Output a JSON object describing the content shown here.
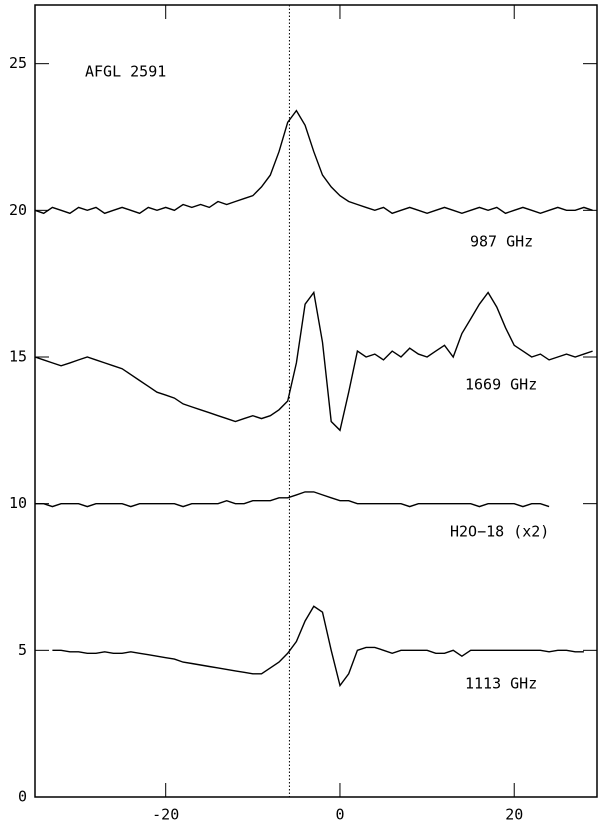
{
  "chart_data": {
    "type": "line",
    "annotations": [
      "AFGL 2591",
      "987 GHz",
      "1669 GHz",
      "H2O−18 (x2)",
      "1113 GHz"
    ],
    "x": [
      -35,
      -34,
      -33,
      -32,
      -31,
      -30,
      -29,
      -28,
      -27,
      -26,
      -25,
      -24,
      -23,
      -22,
      -21,
      -20,
      -19,
      -18,
      -17,
      -16,
      -15,
      -14,
      -13,
      -12,
      -11,
      -10,
      -9,
      -8,
      -7,
      -6,
      -5,
      -4,
      -3,
      -2,
      -1,
      0,
      1,
      2,
      3,
      4,
      5,
      6,
      7,
      8,
      9,
      10,
      11,
      12,
      13,
      14,
      15,
      16,
      17,
      18,
      19,
      20,
      21,
      22,
      23,
      24,
      25,
      26,
      27,
      28,
      29
    ],
    "series": [
      {
        "name": "987 GHz",
        "color": "#000000",
        "values": [
          20.0,
          19.9,
          20.1,
          20.0,
          19.9,
          20.1,
          20.0,
          20.1,
          19.9,
          20.0,
          20.1,
          20.0,
          19.9,
          20.1,
          20.0,
          20.1,
          20.0,
          20.2,
          20.1,
          20.2,
          20.1,
          20.3,
          20.2,
          20.3,
          20.4,
          20.5,
          20.8,
          21.2,
          22.0,
          23.0,
          23.4,
          22.9,
          22.0,
          21.2,
          20.8,
          20.5,
          20.3,
          20.2,
          20.1,
          20.0,
          20.1,
          19.9,
          20.0,
          20.1,
          20.0,
          19.9,
          20.0,
          20.1,
          20.0,
          19.9,
          20.0,
          20.1,
          20.0,
          20.1,
          19.9,
          20.0,
          20.1,
          20.0,
          19.9,
          20.0,
          20.1,
          20.0,
          20.0,
          20.1,
          20.0
        ]
      },
      {
        "name": "1669 GHz",
        "color": "#000000",
        "values": [
          15.0,
          14.9,
          14.8,
          14.7,
          14.8,
          14.9,
          15.0,
          14.9,
          14.8,
          14.7,
          14.6,
          14.4,
          14.2,
          14.0,
          13.8,
          13.7,
          13.6,
          13.4,
          13.3,
          13.2,
          13.1,
          13.0,
          12.9,
          12.8,
          12.9,
          13.0,
          12.9,
          13.0,
          13.2,
          13.5,
          14.8,
          16.8,
          17.2,
          15.5,
          12.8,
          12.5,
          13.8,
          15.2,
          15.0,
          15.1,
          14.9,
          15.2,
          15.0,
          15.3,
          15.1,
          15.0,
          15.2,
          15.4,
          15.0,
          15.8,
          16.3,
          16.8,
          17.2,
          16.7,
          16.0,
          15.4,
          15.2,
          15.0,
          15.1,
          14.9,
          15.0,
          15.1,
          15.0,
          15.1,
          15.2
        ]
      },
      {
        "name": "H2O−18 (x2)",
        "color": "#000000",
        "values": [
          10.0,
          10.0,
          9.9,
          10.0,
          10.0,
          10.0,
          9.9,
          10.0,
          10.0,
          10.0,
          10.0,
          9.9,
          10.0,
          10.0,
          10.0,
          10.0,
          10.0,
          9.9,
          10.0,
          10.0,
          10.0,
          10.0,
          10.1,
          10.0,
          10.0,
          10.1,
          10.1,
          10.1,
          10.2,
          10.2,
          10.3,
          10.4,
          10.4,
          10.3,
          10.2,
          10.1,
          10.1,
          10.0,
          10.0,
          10.0,
          10.0,
          10.0,
          10.0,
          9.9,
          10.0,
          10.0,
          10.0,
          10.0,
          10.0,
          10.0,
          10.0,
          9.9,
          10.0,
          10.0,
          10.0,
          10.0,
          9.9,
          10.0,
          10.0,
          9.9,
          null,
          null,
          null,
          null,
          null
        ]
      },
      {
        "name": "1113 GHz",
        "color": "#000000",
        "values": [
          null,
          null,
          5.0,
          5.0,
          4.95,
          4.95,
          4.9,
          4.9,
          4.95,
          4.9,
          4.9,
          4.95,
          4.9,
          4.85,
          4.8,
          4.75,
          4.7,
          4.6,
          4.55,
          4.5,
          4.45,
          4.4,
          4.35,
          4.3,
          4.25,
          4.2,
          4.2,
          4.4,
          4.6,
          4.9,
          5.3,
          6.0,
          6.5,
          6.3,
          5.0,
          3.8,
          4.2,
          5.0,
          5.1,
          5.1,
          5.0,
          4.9,
          5.0,
          5.0,
          5.0,
          5.0,
          4.9,
          4.9,
          5.0,
          4.8,
          5.0,
          5.0,
          5.0,
          5.0,
          5.0,
          5.0,
          5.0,
          5.0,
          5.0,
          4.95,
          5.0,
          5.0,
          4.95,
          4.95,
          null
        ]
      }
    ],
    "vline": -5.8,
    "xlim": [
      -35,
      29.5
    ],
    "xticks": [
      -20,
      0,
      20
    ],
    "ylim": [
      0,
      27
    ],
    "yticks": [
      0,
      5,
      10,
      15,
      20,
      25
    ]
  }
}
